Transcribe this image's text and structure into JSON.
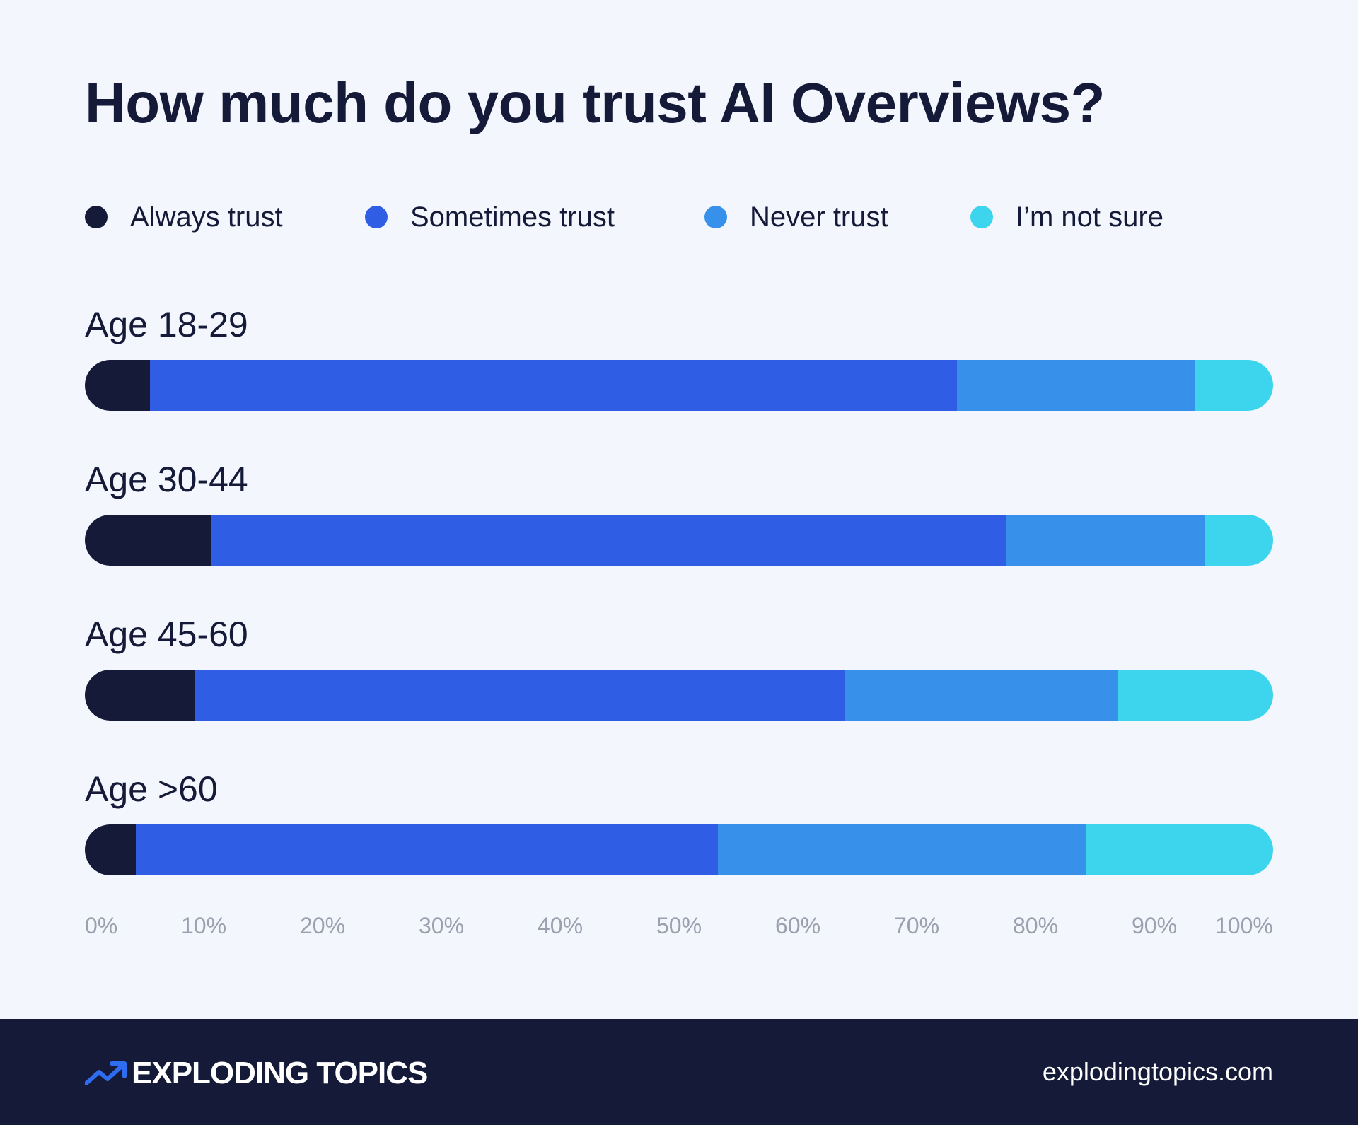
{
  "chart_data": {
    "type": "bar",
    "orientation": "horizontal",
    "stacked": true,
    "title": "How much do you trust AI Overviews?",
    "categories": [
      "Age 18-29",
      "Age 30-44",
      "Age 45-60",
      "Age >60"
    ],
    "series": [
      {
        "name": "Always trust",
        "color": "#141a38",
        "values": [
          5.5,
          10.6,
          9.3,
          4.3
        ]
      },
      {
        "name": "Sometimes trust",
        "color": "#2f5ee4",
        "values": [
          67.9,
          66.9,
          54.6,
          49.0
        ]
      },
      {
        "name": "Never trust",
        "color": "#3791ea",
        "values": [
          20.0,
          16.8,
          23.0,
          30.9
        ]
      },
      {
        "name": "I’m not sure",
        "color": "#3dd5ee",
        "values": [
          6.6,
          5.7,
          13.1,
          15.8
        ]
      }
    ],
    "xlim": [
      0,
      100
    ],
    "xticks": [
      "0%",
      "10%",
      "20%",
      "30%",
      "40%",
      "50%",
      "60%",
      "70%",
      "80%",
      "90%",
      "100%"
    ],
    "legend_position": "top",
    "grid": false
  },
  "footer": {
    "brand": "EXPLODING TOPICS",
    "site": "explodingtopics.com"
  }
}
